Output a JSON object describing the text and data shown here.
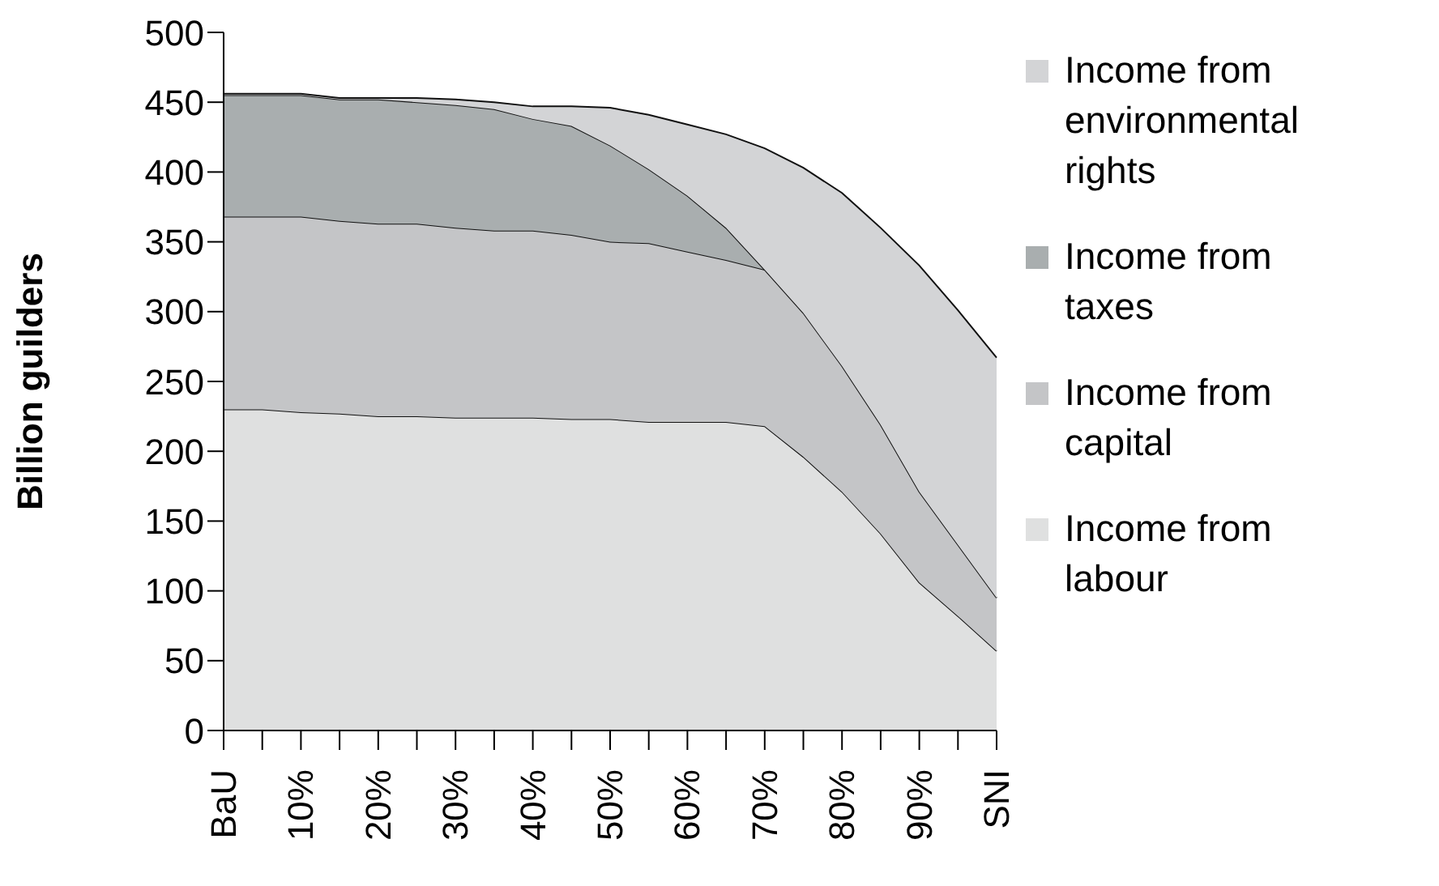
{
  "chart_data": {
    "type": "area",
    "stacked": true,
    "ylabel": "Billion guilders",
    "categories": [
      "BaU",
      null,
      "10%",
      null,
      "20%",
      null,
      "30%",
      null,
      "40%",
      null,
      "50%",
      null,
      "60%",
      null,
      "70%",
      null,
      "80%",
      null,
      "90%",
      null,
      "SNI"
    ],
    "series": [
      {
        "name": "Income from labour",
        "color": "#dfe0e0",
        "values": [
          230,
          230,
          228,
          227,
          225,
          225,
          224,
          224,
          224,
          223,
          223,
          221,
          221,
          221,
          218,
          196,
          171,
          141,
          106,
          82,
          57
        ]
      },
      {
        "name": "Income from capital",
        "color": "#c4c5c7",
        "values": [
          138,
          138,
          140,
          138,
          138,
          138,
          136,
          134,
          134,
          132,
          127,
          128,
          122,
          116,
          112,
          103,
          90,
          78,
          65,
          51,
          38
        ]
      },
      {
        "name": "Income from taxes",
        "color": "#a9aeaf",
        "values": [
          87,
          87,
          87,
          87,
          89,
          87,
          88,
          87,
          80,
          78,
          69,
          53,
          40,
          23,
          0,
          null,
          null,
          null,
          null,
          null,
          null
        ]
      },
      {
        "name": "Income from environmental rights",
        "color": "#d3d4d6",
        "values": [
          1,
          1,
          1,
          1,
          1,
          3,
          4,
          5,
          9,
          14,
          27,
          39,
          51,
          67,
          87,
          104,
          124,
          141,
          162,
          168,
          172
        ]
      }
    ],
    "ylim": [
      0,
      500
    ],
    "yticks": [
      0,
      50,
      100,
      150,
      200,
      250,
      300,
      350,
      400,
      450,
      500
    ],
    "grid": false,
    "legend": "right"
  }
}
